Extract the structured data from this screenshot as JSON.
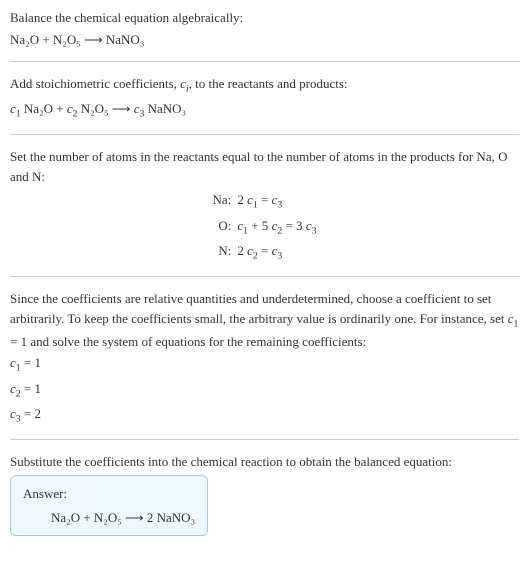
{
  "colors": {
    "text": "#333333",
    "border": "#cccccc",
    "answer_bg": "#f0f8ff",
    "answer_border": "#a8c8e0"
  },
  "typography": {
    "font_family": "Georgia, 'Times New Roman', serif",
    "font_size": 13
  },
  "sections": {
    "s1": {
      "text": "Balance the chemical equation algebraically:",
      "formula": "Na₂O + N₂O₅  ⟶  NaNO₃"
    },
    "s2": {
      "text_a": "Add stoichiometric coefficients, ",
      "ci": "c",
      "ci_sub": "i",
      "text_b": ", to the reactants and products:",
      "formula_c1": "c",
      "formula_c1_sub": "1",
      "formula_r1": " Na₂O + ",
      "formula_c2": "c",
      "formula_c2_sub": "2",
      "formula_r2": " N₂O₅  ⟶  ",
      "formula_c3": "c",
      "formula_c3_sub": "3",
      "formula_r3": " NaNO₃"
    },
    "s3": {
      "text": "Set the number of atoms in the reactants equal to the number of atoms in the products for Na, O and N:",
      "rows": [
        {
          "label": "Na:",
          "eq_a": "2 ",
          "c1": "c",
          "c1s": "1",
          "mid": " = ",
          "c2": "c",
          "c2s": "3",
          "tail": ""
        },
        {
          "label": "O:",
          "eq_a": "",
          "c1": "c",
          "c1s": "1",
          "mid": " + 5 ",
          "c2": "c",
          "c2s": "2",
          "mid2": " = 3 ",
          "c3": "c",
          "c3s": "3"
        },
        {
          "label": "N:",
          "eq_a": "2 ",
          "c1": "c",
          "c1s": "2",
          "mid": " = ",
          "c2": "c",
          "c2s": "3",
          "tail": ""
        }
      ]
    },
    "s4": {
      "text_a": "Since the coefficients are relative quantities and underdetermined, choose a coefficient to set arbitrarily. To keep the coefficients small, the arbitrary value is ordinarily one. For instance, set ",
      "c1": "c",
      "c1s": "1",
      "text_b": " = 1 and solve the system of equations for the remaining coefficients:",
      "coefs": [
        {
          "c": "c",
          "cs": "1",
          "val": " = 1"
        },
        {
          "c": "c",
          "cs": "2",
          "val": " = 1"
        },
        {
          "c": "c",
          "cs": "3",
          "val": " = 2"
        }
      ]
    },
    "s5": {
      "text": "Substitute the coefficients into the chemical reaction to obtain the balanced equation:",
      "answer_label": "Answer:",
      "answer_formula": "Na₂O + N₂O₅  ⟶  2 NaNO₃"
    }
  }
}
